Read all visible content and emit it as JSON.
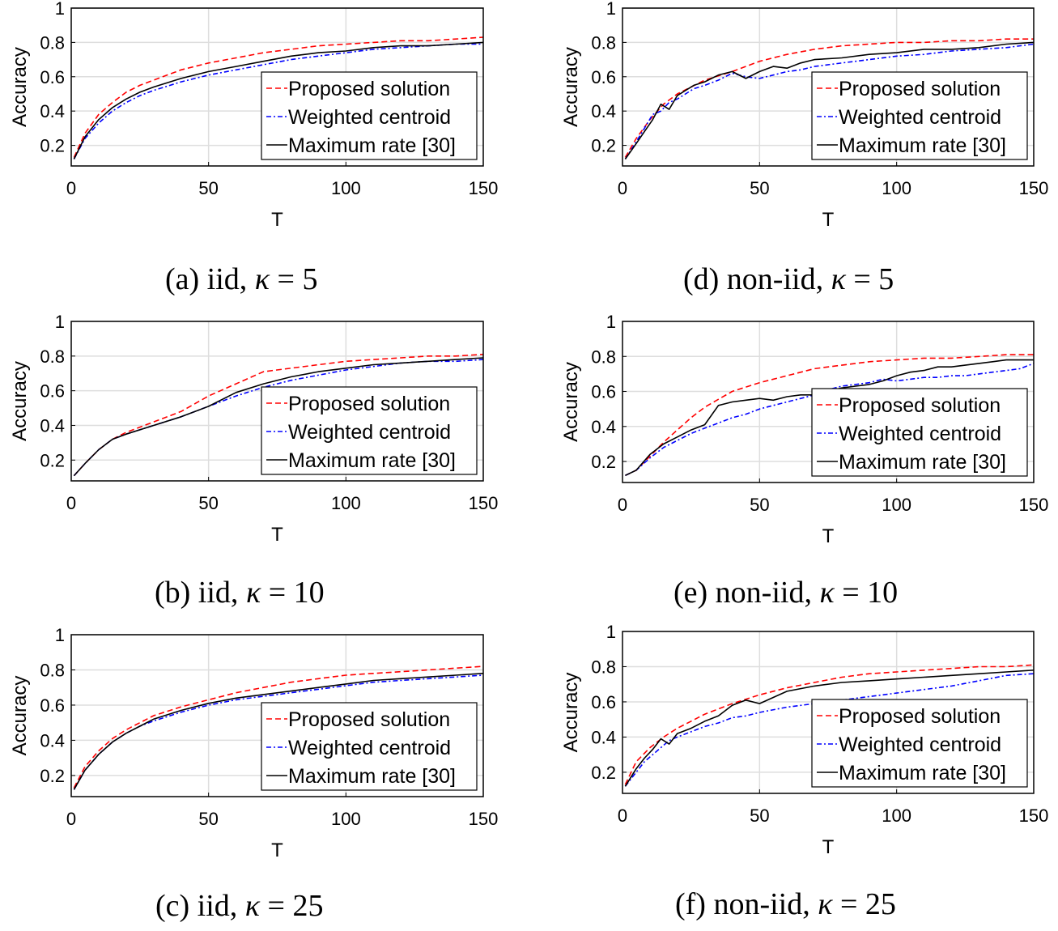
{
  "figure": {
    "colors": {
      "proposed": "#ff0000",
      "weighted": "#0000ff",
      "maxrate": "#000000",
      "grid": "#dedede",
      "axis": "#000000"
    }
  },
  "chart_data": [
    {
      "id": "a",
      "type": "line",
      "caption_prefix": "(a) iid,",
      "kappa_symbol": "κ",
      "kappa_text": "= 5",
      "xlabel": "T",
      "ylabel": "Accuracy",
      "xlim": [
        0,
        150
      ],
      "ylim": [
        0.08,
        1.0
      ],
      "xticks": [
        "0",
        "50",
        "100",
        "150"
      ],
      "yticks": [
        "0.2",
        "0.4",
        "0.6",
        "0.8",
        "1"
      ],
      "grid": true,
      "legend_position": "lower-right",
      "series": [
        {
          "name": "Proposed solution",
          "style": "dashed",
          "color": "#ff0000",
          "x": [
            1,
            5,
            10,
            15,
            20,
            25,
            30,
            40,
            50,
            60,
            70,
            80,
            90,
            100,
            110,
            120,
            130,
            140,
            150
          ],
          "y": [
            0.13,
            0.27,
            0.38,
            0.45,
            0.51,
            0.55,
            0.58,
            0.64,
            0.68,
            0.71,
            0.74,
            0.76,
            0.78,
            0.79,
            0.8,
            0.81,
            0.81,
            0.82,
            0.83
          ]
        },
        {
          "name": "Weighted centroid",
          "style": "dashdot",
          "color": "#0000ff",
          "x": [
            1,
            5,
            10,
            15,
            20,
            25,
            30,
            40,
            50,
            60,
            70,
            80,
            90,
            100,
            110,
            120,
            130,
            140,
            150
          ],
          "y": [
            0.12,
            0.24,
            0.33,
            0.4,
            0.45,
            0.49,
            0.52,
            0.57,
            0.61,
            0.64,
            0.67,
            0.7,
            0.72,
            0.74,
            0.76,
            0.77,
            0.78,
            0.79,
            0.79
          ]
        },
        {
          "name": "Maximum rate [30]",
          "style": "solid",
          "color": "#000000",
          "x": [
            1,
            5,
            10,
            15,
            20,
            25,
            30,
            40,
            50,
            60,
            70,
            80,
            90,
            100,
            110,
            120,
            130,
            140,
            150
          ],
          "y": [
            0.12,
            0.25,
            0.35,
            0.42,
            0.47,
            0.51,
            0.54,
            0.59,
            0.63,
            0.66,
            0.69,
            0.72,
            0.74,
            0.75,
            0.77,
            0.78,
            0.78,
            0.79,
            0.8
          ]
        }
      ]
    },
    {
      "id": "b",
      "type": "line",
      "caption_prefix": "(b) iid,",
      "kappa_symbol": "κ",
      "kappa_text": "= 10",
      "xlabel": "T",
      "ylabel": "Accuracy",
      "xlim": [
        0,
        150
      ],
      "ylim": [
        0.08,
        1.0
      ],
      "xticks": [
        "0",
        "50",
        "100",
        "150"
      ],
      "yticks": [
        "0.2",
        "0.4",
        "0.6",
        "0.8",
        "1"
      ],
      "grid": true,
      "legend_position": "lower-right",
      "series": [
        {
          "name": "Proposed solution",
          "style": "dashed",
          "color": "#ff0000",
          "x": [
            1,
            5,
            10,
            15,
            20,
            30,
            40,
            50,
            60,
            70,
            80,
            90,
            100,
            110,
            120,
            130,
            140,
            150
          ],
          "y": [
            0.11,
            0.18,
            0.26,
            0.32,
            0.36,
            0.42,
            0.48,
            0.57,
            0.64,
            0.71,
            0.73,
            0.75,
            0.77,
            0.78,
            0.79,
            0.8,
            0.8,
            0.81
          ]
        },
        {
          "name": "Weighted centroid",
          "style": "dashdot",
          "color": "#0000ff",
          "x": [
            1,
            5,
            10,
            15,
            20,
            30,
            40,
            50,
            60,
            70,
            80,
            90,
            100,
            110,
            120,
            130,
            140,
            150
          ],
          "y": [
            0.11,
            0.18,
            0.26,
            0.32,
            0.35,
            0.4,
            0.45,
            0.51,
            0.57,
            0.62,
            0.66,
            0.69,
            0.72,
            0.74,
            0.76,
            0.77,
            0.77,
            0.78
          ]
        },
        {
          "name": "Maximum rate [30]",
          "style": "solid",
          "color": "#000000",
          "x": [
            1,
            5,
            10,
            15,
            20,
            30,
            40,
            50,
            60,
            70,
            80,
            90,
            100,
            110,
            120,
            130,
            140,
            150
          ],
          "y": [
            0.11,
            0.18,
            0.26,
            0.32,
            0.35,
            0.4,
            0.45,
            0.51,
            0.59,
            0.64,
            0.68,
            0.71,
            0.73,
            0.75,
            0.76,
            0.77,
            0.78,
            0.79
          ]
        }
      ]
    },
    {
      "id": "c",
      "type": "line",
      "caption_prefix": "(c) iid,",
      "kappa_symbol": "κ",
      "kappa_text": "= 25",
      "xlabel": "T",
      "ylabel": "Accuracy",
      "xlim": [
        0,
        150
      ],
      "ylim": [
        0.08,
        1.0
      ],
      "xticks": [
        "0",
        "50",
        "100",
        "150"
      ],
      "yticks": [
        "0.2",
        "0.4",
        "0.6",
        "0.8",
        "1"
      ],
      "grid": true,
      "legend_position": "lower-right",
      "series": [
        {
          "name": "Proposed solution",
          "style": "dashed",
          "color": "#ff0000",
          "x": [
            1,
            5,
            10,
            15,
            20,
            25,
            30,
            40,
            50,
            60,
            70,
            80,
            90,
            100,
            110,
            120,
            130,
            140,
            150
          ],
          "y": [
            0.13,
            0.25,
            0.34,
            0.41,
            0.46,
            0.5,
            0.54,
            0.59,
            0.63,
            0.67,
            0.7,
            0.73,
            0.75,
            0.77,
            0.78,
            0.79,
            0.8,
            0.81,
            0.82
          ]
        },
        {
          "name": "Weighted centroid",
          "style": "dashdot",
          "color": "#0000ff",
          "x": [
            1,
            5,
            10,
            15,
            20,
            25,
            30,
            40,
            50,
            60,
            70,
            80,
            90,
            100,
            110,
            120,
            130,
            140,
            150
          ],
          "y": [
            0.12,
            0.23,
            0.32,
            0.39,
            0.44,
            0.48,
            0.51,
            0.56,
            0.6,
            0.63,
            0.65,
            0.67,
            0.69,
            0.71,
            0.73,
            0.74,
            0.75,
            0.76,
            0.77
          ]
        },
        {
          "name": "Maximum rate [30]",
          "style": "solid",
          "color": "#000000",
          "x": [
            1,
            5,
            10,
            15,
            20,
            25,
            30,
            40,
            50,
            60,
            70,
            80,
            90,
            100,
            110,
            120,
            130,
            140,
            150
          ],
          "y": [
            0.12,
            0.23,
            0.32,
            0.39,
            0.44,
            0.48,
            0.52,
            0.57,
            0.61,
            0.64,
            0.66,
            0.68,
            0.7,
            0.72,
            0.74,
            0.75,
            0.76,
            0.77,
            0.78
          ]
        }
      ]
    },
    {
      "id": "d",
      "type": "line",
      "caption_prefix": "(d) non-iid,",
      "kappa_symbol": "κ",
      "kappa_text": "= 5",
      "xlabel": "T",
      "ylabel": "Accuracy",
      "xlim": [
        0,
        150
      ],
      "ylim": [
        0.08,
        1.0
      ],
      "xticks": [
        "0",
        "50",
        "100",
        "150"
      ],
      "yticks": [
        "0.2",
        "0.4",
        "0.6",
        "0.8",
        "1"
      ],
      "grid": true,
      "legend_position": "lower-right",
      "series": [
        {
          "name": "Proposed solution",
          "style": "dashed",
          "color": "#ff0000",
          "x": [
            1,
            5,
            10,
            15,
            20,
            25,
            30,
            40,
            50,
            60,
            70,
            80,
            90,
            100,
            110,
            120,
            130,
            140,
            150
          ],
          "y": [
            0.13,
            0.24,
            0.35,
            0.44,
            0.5,
            0.54,
            0.58,
            0.63,
            0.69,
            0.73,
            0.76,
            0.78,
            0.79,
            0.8,
            0.8,
            0.81,
            0.81,
            0.82,
            0.82
          ]
        },
        {
          "name": "Weighted centroid",
          "style": "dashdot",
          "color": "#0000ff",
          "x": [
            1,
            5,
            8,
            11,
            14,
            17,
            20,
            23,
            26,
            30,
            35,
            40,
            45,
            50,
            55,
            60,
            65,
            70,
            80,
            90,
            100,
            110,
            120,
            130,
            140,
            150
          ],
          "y": [
            0.12,
            0.22,
            0.3,
            0.38,
            0.4,
            0.45,
            0.47,
            0.5,
            0.53,
            0.55,
            0.58,
            0.62,
            0.6,
            0.59,
            0.61,
            0.63,
            0.64,
            0.66,
            0.68,
            0.7,
            0.72,
            0.73,
            0.75,
            0.76,
            0.77,
            0.79
          ]
        },
        {
          "name": "Maximum rate [30]",
          "style": "solid",
          "color": "#000000",
          "x": [
            1,
            5,
            8,
            11,
            14,
            17,
            20,
            23,
            26,
            30,
            35,
            40,
            45,
            50,
            55,
            60,
            65,
            70,
            80,
            90,
            100,
            110,
            120,
            130,
            140,
            150
          ],
          "y": [
            0.12,
            0.21,
            0.28,
            0.35,
            0.44,
            0.41,
            0.49,
            0.52,
            0.55,
            0.57,
            0.61,
            0.63,
            0.59,
            0.63,
            0.66,
            0.65,
            0.68,
            0.7,
            0.71,
            0.73,
            0.74,
            0.76,
            0.76,
            0.77,
            0.79,
            0.8
          ]
        }
      ]
    },
    {
      "id": "e",
      "type": "line",
      "caption_prefix": "(e) non-iid,",
      "kappa_symbol": "κ",
      "kappa_text": "= 10",
      "xlabel": "T",
      "ylabel": "Accuracy",
      "xlim": [
        0,
        150
      ],
      "ylim": [
        0.08,
        1.0
      ],
      "xticks": [
        "0",
        "50",
        "100",
        "150"
      ],
      "yticks": [
        "0.2",
        "0.4",
        "0.6",
        "0.8",
        "1"
      ],
      "grid": true,
      "legend_position": "lower-right",
      "series": [
        {
          "name": "Proposed solution",
          "style": "dashed",
          "color": "#ff0000",
          "x": [
            1,
            5,
            10,
            15,
            20,
            25,
            30,
            40,
            50,
            60,
            70,
            80,
            90,
            100,
            110,
            120,
            130,
            140,
            150
          ],
          "y": [
            0.12,
            0.15,
            0.23,
            0.31,
            0.38,
            0.45,
            0.51,
            0.6,
            0.65,
            0.69,
            0.73,
            0.75,
            0.77,
            0.78,
            0.79,
            0.79,
            0.8,
            0.81,
            0.81
          ]
        },
        {
          "name": "Weighted centroid",
          "style": "dashdot",
          "color": "#0000ff",
          "x": [
            1,
            5,
            10,
            15,
            20,
            25,
            30,
            35,
            40,
            45,
            50,
            55,
            60,
            65,
            70,
            75,
            80,
            85,
            90,
            95,
            100,
            105,
            110,
            115,
            120,
            125,
            130,
            135,
            140,
            145,
            150
          ],
          "y": [
            0.12,
            0.15,
            0.22,
            0.28,
            0.32,
            0.36,
            0.39,
            0.42,
            0.45,
            0.47,
            0.5,
            0.52,
            0.54,
            0.56,
            0.58,
            0.61,
            0.63,
            0.64,
            0.65,
            0.67,
            0.66,
            0.67,
            0.68,
            0.68,
            0.69,
            0.69,
            0.7,
            0.71,
            0.72,
            0.73,
            0.76
          ]
        },
        {
          "name": "Maximum rate [30]",
          "style": "solid",
          "color": "#000000",
          "x": [
            1,
            5,
            10,
            15,
            20,
            25,
            30,
            35,
            40,
            45,
            50,
            55,
            60,
            65,
            70,
            75,
            80,
            85,
            90,
            95,
            100,
            105,
            110,
            115,
            120,
            125,
            130,
            135,
            140,
            145,
            150
          ],
          "y": [
            0.12,
            0.15,
            0.24,
            0.3,
            0.34,
            0.38,
            0.41,
            0.52,
            0.54,
            0.55,
            0.56,
            0.55,
            0.57,
            0.58,
            0.58,
            0.6,
            0.62,
            0.63,
            0.64,
            0.66,
            0.69,
            0.71,
            0.72,
            0.74,
            0.74,
            0.75,
            0.76,
            0.77,
            0.78,
            0.78,
            0.78
          ]
        }
      ]
    },
    {
      "id": "f",
      "type": "line",
      "caption_prefix": "(f) non-iid,",
      "kappa_symbol": "κ",
      "kappa_text": "= 25",
      "xlabel": "T",
      "ylabel": "Accuracy",
      "xlim": [
        0,
        150
      ],
      "ylim": [
        0.08,
        1.0
      ],
      "xticks": [
        "0",
        "50",
        "100",
        "150"
      ],
      "yticks": [
        "0.2",
        "0.4",
        "0.6",
        "0.8",
        "1"
      ],
      "grid": true,
      "legend_position": "lower-right",
      "series": [
        {
          "name": "Proposed solution",
          "style": "dashed",
          "color": "#ff0000",
          "x": [
            1,
            5,
            10,
            15,
            20,
            25,
            30,
            40,
            50,
            60,
            70,
            80,
            90,
            100,
            110,
            120,
            130,
            140,
            150
          ],
          "y": [
            0.13,
            0.26,
            0.34,
            0.4,
            0.45,
            0.49,
            0.53,
            0.59,
            0.64,
            0.68,
            0.71,
            0.74,
            0.76,
            0.77,
            0.78,
            0.79,
            0.8,
            0.8,
            0.81
          ]
        },
        {
          "name": "Weighted centroid",
          "style": "dashdot",
          "color": "#0000ff",
          "x": [
            1,
            5,
            8,
            11,
            14,
            17,
            20,
            25,
            30,
            35,
            40,
            45,
            50,
            60,
            70,
            80,
            90,
            100,
            110,
            120,
            130,
            140,
            150
          ],
          "y": [
            0.12,
            0.2,
            0.26,
            0.3,
            0.34,
            0.38,
            0.4,
            0.43,
            0.46,
            0.48,
            0.51,
            0.52,
            0.54,
            0.57,
            0.59,
            0.61,
            0.63,
            0.65,
            0.67,
            0.69,
            0.72,
            0.75,
            0.76
          ]
        },
        {
          "name": "Maximum rate [30]",
          "style": "solid",
          "color": "#000000",
          "x": [
            1,
            5,
            8,
            11,
            14,
            17,
            20,
            25,
            30,
            35,
            40,
            45,
            50,
            60,
            70,
            80,
            90,
            100,
            110,
            120,
            130,
            140,
            150
          ],
          "y": [
            0.12,
            0.22,
            0.28,
            0.33,
            0.39,
            0.36,
            0.42,
            0.45,
            0.49,
            0.52,
            0.58,
            0.61,
            0.59,
            0.66,
            0.69,
            0.71,
            0.72,
            0.73,
            0.74,
            0.75,
            0.76,
            0.77,
            0.78
          ]
        }
      ]
    }
  ]
}
